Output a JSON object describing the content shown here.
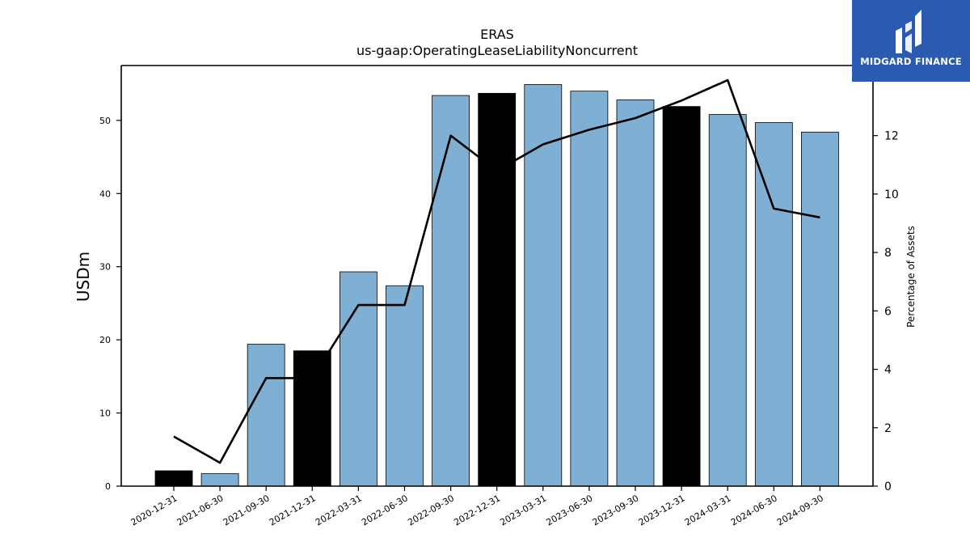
{
  "brand": {
    "name": "MIDGARD FINANCE",
    "colors": {
      "background": "#2b5bb0",
      "text": "#ffffff"
    },
    "icon": "midgard-logo-icon"
  },
  "chart_data": {
    "type": "bar",
    "title": "ERAS",
    "subtitle": "us-gaap:OperatingLeaseLiabilityNoncurrent",
    "ylabel": "USDm",
    "y2label": "Percentage of Assets",
    "categories": [
      "2020-12-31",
      "2021-06-30",
      "2021-09-30",
      "2021-12-31",
      "2022-03-31",
      "2022-06-30",
      "2022-09-30",
      "2022-12-31",
      "2023-03-31",
      "2023-06-30",
      "2023-09-30",
      "2023-12-31",
      "2024-03-31",
      "2024-06-30",
      "2024-09-30"
    ],
    "series": [
      {
        "kind": "bar",
        "axis": "left",
        "values": [
          2.1,
          1.7,
          19.4,
          18.5,
          29.3,
          27.4,
          53.4,
          53.7,
          54.9,
          54.0,
          52.8,
          51.9,
          50.8,
          49.7,
          48.4
        ]
      },
      {
        "kind": "line",
        "axis": "right",
        "values": [
          1.7,
          0.8,
          3.7,
          3.7,
          6.2,
          6.2,
          12.0,
          10.8,
          11.7,
          12.2,
          12.6,
          13.2,
          13.9,
          9.5,
          9.2
        ]
      }
    ],
    "bar_colors": [
      "#000000",
      "#7fb0d3",
      "#7fb0d3",
      "#000000",
      "#7fb0d3",
      "#7fb0d3",
      "#7fb0d3",
      "#000000",
      "#7fb0d3",
      "#7fb0d3",
      "#7fb0d3",
      "#000000",
      "#7fb0d3",
      "#7fb0d3",
      "#7fb0d3"
    ],
    "line_color": "#000000",
    "ylim": [
      0,
      57.5
    ],
    "y2lim": [
      0,
      14.4
    ],
    "yticks": [
      0,
      10,
      20,
      30,
      40,
      50
    ],
    "y2ticks": [
      0,
      2,
      4,
      6,
      8,
      10,
      12
    ],
    "grid": false,
    "legend": "none"
  }
}
